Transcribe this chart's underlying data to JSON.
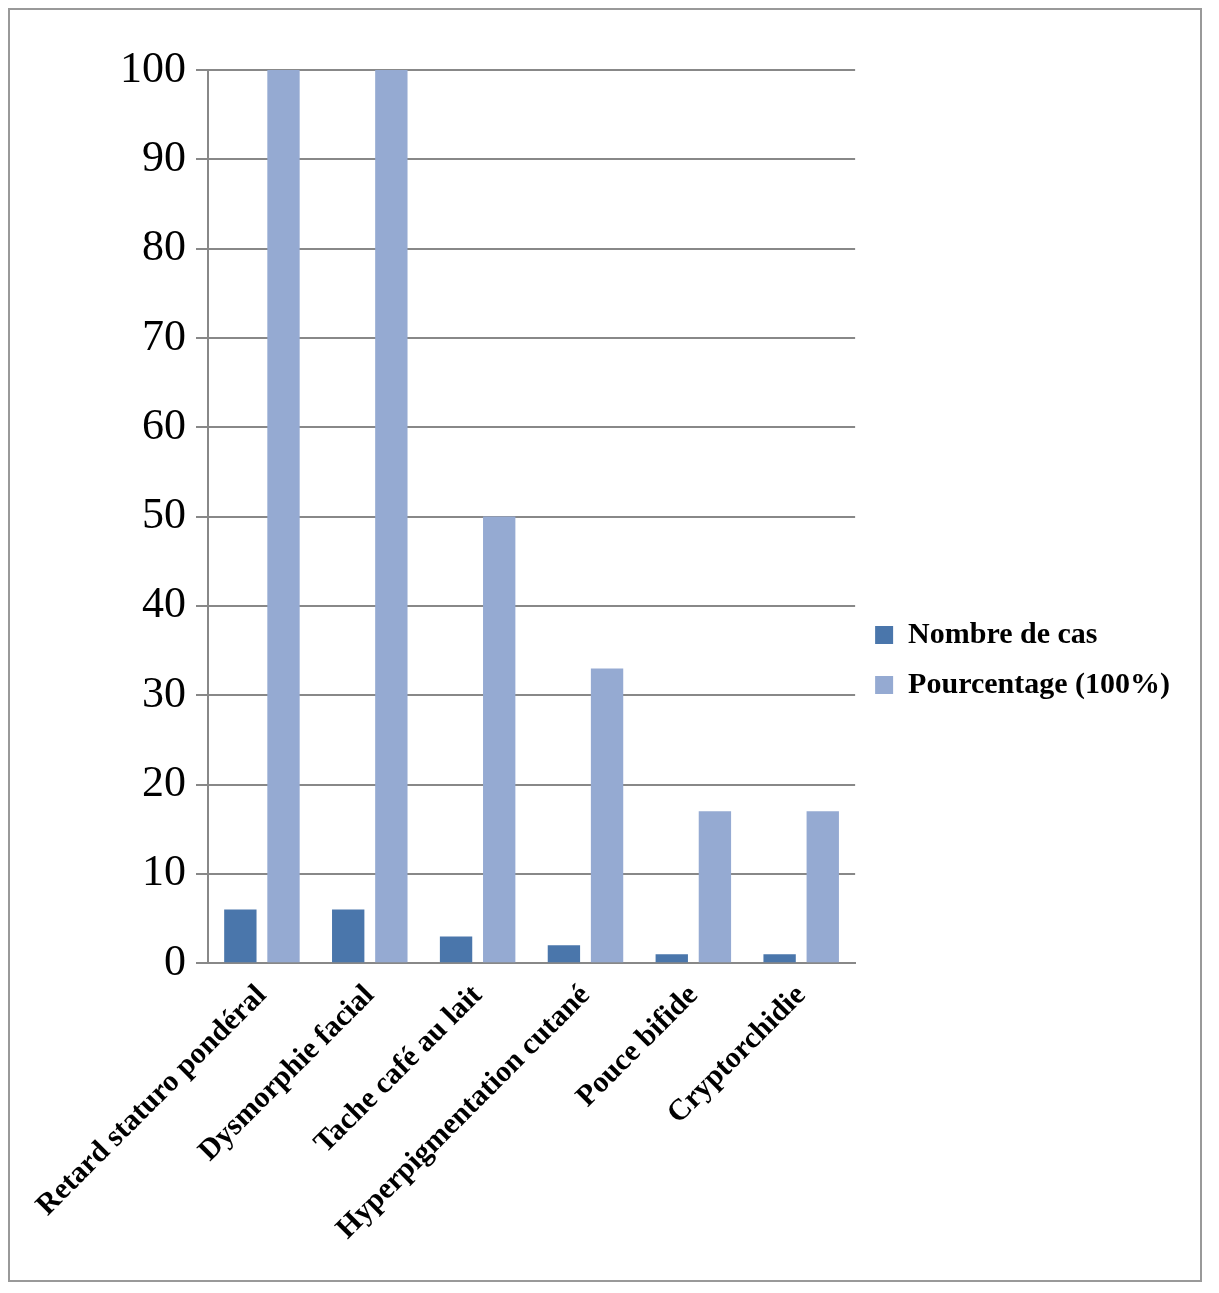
{
  "chart_data": {
    "type": "bar",
    "categories": [
      "Retard staturo pondéral",
      "Dysmorphie facial",
      "Tache café au lait",
      "Hyperpigmentation cutané",
      "Pouce bifide",
      "Cryptorchidie"
    ],
    "series": [
      {
        "name": "Nombre de cas",
        "color": "#4a76ab",
        "values": [
          6,
          6,
          3,
          2,
          1,
          1
        ]
      },
      {
        "name": "Pourcentage (100%)",
        "color": "#95aad2",
        "values": [
          100,
          100,
          50,
          33,
          17,
          17
        ]
      }
    ],
    "ylim": [
      0,
      100
    ],
    "yticks": [
      0,
      10,
      20,
      30,
      40,
      50,
      60,
      70,
      80,
      90,
      100
    ],
    "grid": "y",
    "legend": "right"
  }
}
